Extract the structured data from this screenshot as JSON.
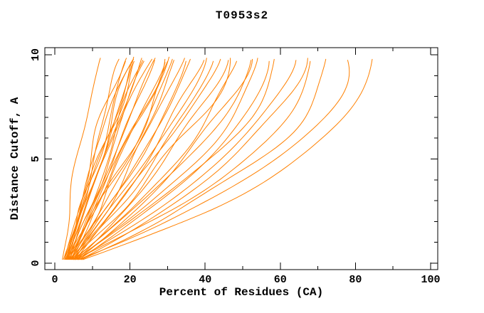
{
  "page": {
    "background": "#ffffff"
  },
  "chart_data": {
    "type": "line",
    "title": "T0953s2",
    "xlabel": "Percent of Residues (CA)",
    "ylabel": "Distance Cutoff, A",
    "xlim": [
      0,
      100
    ],
    "ylim": [
      0,
      10
    ],
    "x_major_ticks": [
      0,
      20,
      40,
      60,
      80,
      100
    ],
    "x_minor_ticks": [
      10,
      30,
      50,
      70,
      90
    ],
    "y_major_ticks": [
      0,
      5,
      10
    ],
    "y_minor_ticks": [
      1,
      2,
      3,
      4,
      6,
      7,
      8,
      9
    ],
    "grid": false,
    "legend_position": "none",
    "frame_color": "#000000",
    "text_color": "#000000",
    "curve_color": "#ff8000",
    "axes_units": {
      "x": "percent of residues (CA)",
      "y": "distance cutoff, Angstrom"
    },
    "curve_start_cutoff": 0.17,
    "curves": [
      {
        "start_pct": 2.0,
        "end_pct": 11.5,
        "bend": 0.85,
        "end_cutoff": 9.85
      },
      {
        "start_pct": 2.6,
        "end_pct": 17.5,
        "bend": 0.92,
        "end_cutoff": 9.7
      },
      {
        "start_pct": 3.1,
        "end_pct": 18.5,
        "bend": 0.88,
        "end_cutoff": 9.8
      },
      {
        "start_pct": 2.3,
        "end_pct": 19.5,
        "bend": 0.95,
        "end_cutoff": 9.75
      },
      {
        "start_pct": 3.6,
        "end_pct": 20.0,
        "bend": 0.9,
        "end_cutoff": 9.85
      },
      {
        "start_pct": 2.9,
        "end_pct": 20.5,
        "bend": 1.0,
        "end_cutoff": 9.65
      },
      {
        "start_pct": 4.1,
        "end_pct": 21.0,
        "bend": 0.93,
        "end_cutoff": 9.8
      },
      {
        "start_pct": 3.3,
        "end_pct": 21.5,
        "bend": 0.98,
        "end_cutoff": 9.9
      },
      {
        "start_pct": 2.6,
        "end_pct": 22.0,
        "bend": 0.9,
        "end_cutoff": 9.7
      },
      {
        "start_pct": 4.6,
        "end_pct": 22.5,
        "bend": 1.05,
        "end_cutoff": 9.75
      },
      {
        "start_pct": 3.0,
        "end_pct": 23.5,
        "bend": 0.96,
        "end_cutoff": 9.85
      },
      {
        "start_pct": 3.9,
        "end_pct": 24.0,
        "bend": 1.02,
        "end_cutoff": 9.7
      },
      {
        "start_pct": 2.8,
        "end_pct": 25.0,
        "bend": 0.94,
        "end_cutoff": 9.8
      },
      {
        "start_pct": 4.3,
        "end_pct": 26.0,
        "bend": 1.08,
        "end_cutoff": 9.75
      },
      {
        "start_pct": 3.4,
        "end_pct": 27.0,
        "bend": 1.0,
        "end_cutoff": 9.85
      },
      {
        "start_pct": 5.1,
        "end_pct": 28.0,
        "bend": 1.12,
        "end_cutoff": 9.65
      },
      {
        "start_pct": 3.7,
        "end_pct": 29.0,
        "bend": 1.04,
        "end_cutoff": 9.8
      },
      {
        "start_pct": 3.0,
        "end_pct": 30.0,
        "bend": 1.1,
        "end_cutoff": 9.9
      },
      {
        "start_pct": 4.5,
        "end_pct": 31.0,
        "bend": 1.06,
        "end_cutoff": 9.7
      },
      {
        "start_pct": 3.2,
        "end_pct": 32.0,
        "bend": 1.12,
        "end_cutoff": 9.8
      },
      {
        "start_pct": 5.3,
        "end_pct": 33.0,
        "bend": 1.18,
        "end_cutoff": 9.75
      },
      {
        "start_pct": 4.0,
        "end_pct": 34.0,
        "bend": 1.14,
        "end_cutoff": 9.85
      },
      {
        "start_pct": 4.7,
        "end_pct": 35.5,
        "bend": 1.2,
        "end_cutoff": 9.7
      },
      {
        "start_pct": 3.5,
        "end_pct": 37.0,
        "bend": 1.16,
        "end_cutoff": 9.8
      },
      {
        "start_pct": 5.6,
        "end_pct": 38.5,
        "bend": 1.25,
        "end_cutoff": 9.75
      },
      {
        "start_pct": 4.2,
        "end_pct": 40.0,
        "bend": 1.22,
        "end_cutoff": 9.85
      },
      {
        "start_pct": 4.9,
        "end_pct": 41.5,
        "bend": 1.28,
        "end_cutoff": 9.7
      },
      {
        "start_pct": 3.8,
        "end_pct": 43.0,
        "bend": 1.25,
        "end_cutoff": 9.8
      },
      {
        "start_pct": 5.9,
        "end_pct": 45.0,
        "bend": 1.35,
        "end_cutoff": 9.75
      },
      {
        "start_pct": 4.4,
        "end_pct": 47.0,
        "bend": 1.3,
        "end_cutoff": 9.85
      },
      {
        "start_pct": 5.2,
        "end_pct": 49.0,
        "bend": 1.38,
        "end_cutoff": 9.7
      },
      {
        "start_pct": 6.1,
        "end_pct": 51.0,
        "bend": 1.45,
        "end_cutoff": 9.8
      },
      {
        "start_pct": 4.8,
        "end_pct": 53.0,
        "bend": 1.4,
        "end_cutoff": 9.75
      },
      {
        "start_pct": 5.5,
        "end_pct": 55.0,
        "bend": 1.5,
        "end_cutoff": 9.85
      },
      {
        "start_pct": 6.4,
        "end_pct": 57.5,
        "bend": 1.55,
        "end_cutoff": 9.7
      },
      {
        "start_pct": 5.0,
        "end_pct": 60.0,
        "bend": 1.52,
        "end_cutoff": 9.8
      },
      {
        "start_pct": 5.8,
        "end_pct": 63.0,
        "bend": 1.6,
        "end_cutoff": 9.75
      },
      {
        "start_pct": 6.7,
        "end_pct": 66.0,
        "bend": 1.68,
        "end_cutoff": 9.85
      },
      {
        "start_pct": 5.4,
        "end_pct": 69.5,
        "bend": 1.72,
        "end_cutoff": 9.7
      },
      {
        "start_pct": 7.0,
        "end_pct": 73.0,
        "bend": 1.8,
        "end_cutoff": 9.8
      },
      {
        "start_pct": 6.2,
        "end_pct": 78.0,
        "bend": 1.9,
        "end_cutoff": 9.75
      },
      {
        "start_pct": 7.4,
        "end_pct": 84.0,
        "bend": 2.0,
        "end_cutoff": 9.8
      }
    ]
  }
}
